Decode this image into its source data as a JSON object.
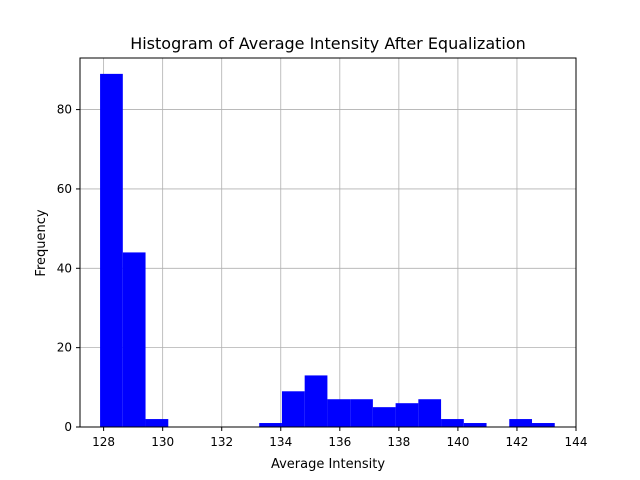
{
  "chart_data": {
    "type": "bar",
    "title": "Histogram of Average Intensity After Equalization",
    "xlabel": "Average Intensity",
    "ylabel": "Frequency",
    "xlim": [
      127.2,
      144.0
    ],
    "ylim": [
      0,
      93
    ],
    "grid": true,
    "bar_color": "#0000ff",
    "x_ticks": [
      128,
      130,
      132,
      134,
      136,
      138,
      140,
      142,
      144
    ],
    "y_ticks": [
      0,
      20,
      40,
      60,
      80
    ],
    "bins": [
      {
        "x0": 127.88,
        "x1": 128.65,
        "value": 89
      },
      {
        "x0": 128.65,
        "x1": 129.42,
        "value": 44
      },
      {
        "x0": 129.42,
        "x1": 130.19,
        "value": 2
      },
      {
        "x0": 130.19,
        "x1": 130.96,
        "value": 0
      },
      {
        "x0": 130.96,
        "x1": 131.73,
        "value": 0
      },
      {
        "x0": 131.73,
        "x1": 132.5,
        "value": 0
      },
      {
        "x0": 132.5,
        "x1": 133.27,
        "value": 0
      },
      {
        "x0": 133.27,
        "x1": 134.04,
        "value": 1
      },
      {
        "x0": 134.04,
        "x1": 134.81,
        "value": 9
      },
      {
        "x0": 134.81,
        "x1": 135.58,
        "value": 13
      },
      {
        "x0": 135.58,
        "x1": 136.35,
        "value": 7
      },
      {
        "x0": 136.35,
        "x1": 137.12,
        "value": 7
      },
      {
        "x0": 137.12,
        "x1": 137.89,
        "value": 5
      },
      {
        "x0": 137.89,
        "x1": 138.66,
        "value": 6
      },
      {
        "x0": 138.66,
        "x1": 139.43,
        "value": 7
      },
      {
        "x0": 139.43,
        "x1": 140.2,
        "value": 2
      },
      {
        "x0": 140.2,
        "x1": 140.97,
        "value": 1
      },
      {
        "x0": 140.97,
        "x1": 141.74,
        "value": 0
      },
      {
        "x0": 141.74,
        "x1": 142.51,
        "value": 2
      },
      {
        "x0": 142.51,
        "x1": 143.28,
        "value": 1
      }
    ]
  }
}
